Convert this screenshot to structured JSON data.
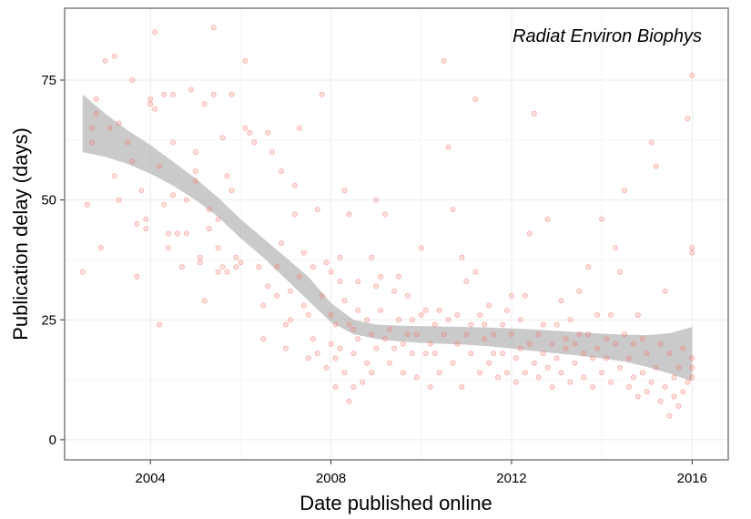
{
  "chart_data": {
    "type": "scatter",
    "annotation": "Radiat Environ Biophys",
    "xlabel": "Date published online",
    "ylabel": "Publication delay (days)",
    "xlim": [
      2002.1,
      2016.8
    ],
    "ylim": [
      -4.2,
      90
    ],
    "x_ticks": [
      2004,
      2008,
      2012,
      2016
    ],
    "x_tick_labels": [
      "2004",
      "2008",
      "2012",
      "2016"
    ],
    "y_ticks": [
      0,
      25,
      50,
      75
    ],
    "y_tick_labels": [
      "0",
      "25",
      "50",
      "75"
    ],
    "grid": true,
    "point_color": "#f8766d",
    "point_alpha": 0.3,
    "band_color": "#b3b3b3",
    "smooth": {
      "x": [
        2002.5,
        2003.0,
        2003.5,
        2004.0,
        2004.5,
        2005.0,
        2005.5,
        2006.0,
        2006.5,
        2007.0,
        2007.5,
        2008.0,
        2008.5,
        2009.0,
        2009.5,
        2010.0,
        2010.5,
        2011.0,
        2011.5,
        2012.0,
        2012.5,
        2013.0,
        2013.5,
        2014.0,
        2014.5,
        2015.0,
        2015.5,
        2016.0
      ],
      "lower": [
        60,
        59,
        57.5,
        55.5,
        53,
        50,
        46.5,
        42,
        38,
        33.5,
        29,
        24.5,
        22,
        21,
        20.5,
        20.2,
        20,
        19.8,
        19.5,
        19,
        18.5,
        18,
        17.5,
        17,
        16.3,
        15.2,
        13.8,
        12.2
      ],
      "upper": [
        72,
        68,
        64.5,
        61.5,
        58,
        54.5,
        50.5,
        46,
        42,
        38,
        34,
        28.5,
        25,
        24,
        23.8,
        23.7,
        23.6,
        23.5,
        23.4,
        23.2,
        23,
        22.7,
        22.4,
        22.1,
        21.9,
        21.8,
        22.2,
        23.5
      ]
    },
    "points": [
      [
        2002.5,
        35
      ],
      [
        2002.6,
        49
      ],
      [
        2002.7,
        62
      ],
      [
        2002.7,
        65
      ],
      [
        2002.8,
        68
      ],
      [
        2002.8,
        71
      ],
      [
        2002.9,
        40
      ],
      [
        2003.0,
        79
      ],
      [
        2003.1,
        65
      ],
      [
        2003.2,
        80
      ],
      [
        2003.2,
        55
      ],
      [
        2003.3,
        66
      ],
      [
        2003.3,
        50
      ],
      [
        2003.5,
        62
      ],
      [
        2003.6,
        58
      ],
      [
        2003.6,
        75
      ],
      [
        2003.7,
        45
      ],
      [
        2003.7,
        34
      ],
      [
        2003.8,
        52
      ],
      [
        2003.9,
        46
      ],
      [
        2003.9,
        44
      ],
      [
        2004.0,
        71
      ],
      [
        2004.0,
        70
      ],
      [
        2004.1,
        85
      ],
      [
        2004.1,
        69
      ],
      [
        2004.2,
        57
      ],
      [
        2004.2,
        24
      ],
      [
        2004.3,
        49
      ],
      [
        2004.3,
        72
      ],
      [
        2004.4,
        40
      ],
      [
        2004.4,
        43
      ],
      [
        2004.5,
        51
      ],
      [
        2004.5,
        62
      ],
      [
        2004.5,
        72
      ],
      [
        2004.6,
        43
      ],
      [
        2004.7,
        36
      ],
      [
        2004.8,
        43
      ],
      [
        2004.8,
        50
      ],
      [
        2004.9,
        73
      ],
      [
        2005.0,
        60
      ],
      [
        2005.0,
        54
      ],
      [
        2005.0,
        56
      ],
      [
        2005.1,
        37
      ],
      [
        2005.1,
        38
      ],
      [
        2005.2,
        70
      ],
      [
        2005.2,
        29
      ],
      [
        2005.3,
        48
      ],
      [
        2005.3,
        44
      ],
      [
        2005.4,
        72
      ],
      [
        2005.4,
        86
      ],
      [
        2005.5,
        46
      ],
      [
        2005.5,
        40
      ],
      [
        2005.5,
        35
      ],
      [
        2005.6,
        36
      ],
      [
        2005.6,
        63
      ],
      [
        2005.7,
        35
      ],
      [
        2005.7,
        55
      ],
      [
        2005.8,
        52
      ],
      [
        2005.8,
        72
      ],
      [
        2005.9,
        38
      ],
      [
        2005.9,
        36
      ],
      [
        2006.0,
        37
      ],
      [
        2006.1,
        79
      ],
      [
        2006.1,
        65
      ],
      [
        2006.2,
        64
      ],
      [
        2006.3,
        62
      ],
      [
        2006.4,
        36
      ],
      [
        2006.5,
        21
      ],
      [
        2006.5,
        28
      ],
      [
        2006.6,
        32
      ],
      [
        2006.6,
        64
      ],
      [
        2006.7,
        60
      ],
      [
        2006.8,
        30
      ],
      [
        2006.8,
        36
      ],
      [
        2006.9,
        56
      ],
      [
        2006.9,
        41
      ],
      [
        2007.0,
        24
      ],
      [
        2007.0,
        19
      ],
      [
        2007.1,
        31
      ],
      [
        2007.1,
        25
      ],
      [
        2007.2,
        53
      ],
      [
        2007.2,
        47
      ],
      [
        2007.3,
        65
      ],
      [
        2007.3,
        34
      ],
      [
        2007.4,
        28
      ],
      [
        2007.4,
        39
      ],
      [
        2007.5,
        17
      ],
      [
        2007.5,
        26
      ],
      [
        2007.6,
        36
      ],
      [
        2007.6,
        21
      ],
      [
        2007.7,
        48
      ],
      [
        2007.7,
        18
      ],
      [
        2007.8,
        72
      ],
      [
        2007.8,
        30
      ],
      [
        2007.9,
        37
      ],
      [
        2007.9,
        15
      ],
      [
        2008.0,
        35
      ],
      [
        2008.0,
        26
      ],
      [
        2008.0,
        20
      ],
      [
        2008.1,
        24
      ],
      [
        2008.1,
        11
      ],
      [
        2008.1,
        17
      ],
      [
        2008.2,
        38
      ],
      [
        2008.2,
        33
      ],
      [
        2008.2,
        19
      ],
      [
        2008.3,
        52
      ],
      [
        2008.3,
        29
      ],
      [
        2008.3,
        14
      ],
      [
        2008.4,
        47
      ],
      [
        2008.4,
        24
      ],
      [
        2008.4,
        8
      ],
      [
        2008.5,
        23
      ],
      [
        2008.5,
        18
      ],
      [
        2008.5,
        11
      ],
      [
        2008.6,
        33
      ],
      [
        2008.6,
        27
      ],
      [
        2008.6,
        21
      ],
      [
        2008.7,
        12
      ],
      [
        2008.8,
        25
      ],
      [
        2008.8,
        16
      ],
      [
        2008.9,
        38
      ],
      [
        2008.9,
        22
      ],
      [
        2008.9,
        14
      ],
      [
        2009.0,
        32
      ],
      [
        2009.0,
        50
      ],
      [
        2009.0,
        19
      ],
      [
        2009.1,
        34
      ],
      [
        2009.1,
        27
      ],
      [
        2009.2,
        47
      ],
      [
        2009.2,
        21
      ],
      [
        2009.3,
        23
      ],
      [
        2009.3,
        16
      ],
      [
        2009.4,
        31
      ],
      [
        2009.4,
        19
      ],
      [
        2009.5,
        34
      ],
      [
        2009.5,
        25
      ],
      [
        2009.6,
        20
      ],
      [
        2009.6,
        14
      ],
      [
        2009.7,
        22
      ],
      [
        2009.7,
        30
      ],
      [
        2009.8,
        18
      ],
      [
        2009.8,
        25
      ],
      [
        2009.9,
        13
      ],
      [
        2009.9,
        22
      ],
      [
        2010.0,
        40
      ],
      [
        2010.0,
        26
      ],
      [
        2010.1,
        18
      ],
      [
        2010.1,
        27
      ],
      [
        2010.2,
        20
      ],
      [
        2010.2,
        11
      ],
      [
        2010.3,
        24
      ],
      [
        2010.3,
        18
      ],
      [
        2010.4,
        27
      ],
      [
        2010.4,
        14
      ],
      [
        2010.5,
        22
      ],
      [
        2010.5,
        79
      ],
      [
        2010.6,
        61
      ],
      [
        2010.6,
        25
      ],
      [
        2010.7,
        48
      ],
      [
        2010.7,
        16
      ],
      [
        2010.8,
        26
      ],
      [
        2010.8,
        20
      ],
      [
        2010.9,
        38
      ],
      [
        2010.9,
        11
      ],
      [
        2011.0,
        33
      ],
      [
        2011.0,
        22
      ],
      [
        2011.1,
        24
      ],
      [
        2011.1,
        18
      ],
      [
        2011.2,
        35
      ],
      [
        2011.2,
        71
      ],
      [
        2011.3,
        26
      ],
      [
        2011.3,
        14
      ],
      [
        2011.4,
        21
      ],
      [
        2011.4,
        24
      ],
      [
        2011.5,
        16
      ],
      [
        2011.5,
        28
      ],
      [
        2011.6,
        22
      ],
      [
        2011.6,
        18
      ],
      [
        2011.7,
        13
      ],
      [
        2011.8,
        24
      ],
      [
        2011.8,
        18
      ],
      [
        2011.9,
        27
      ],
      [
        2011.9,
        14
      ],
      [
        2012.0,
        30
      ],
      [
        2012.0,
        22
      ],
      [
        2012.1,
        17
      ],
      [
        2012.1,
        12
      ],
      [
        2012.2,
        25
      ],
      [
        2012.2,
        19
      ],
      [
        2012.3,
        30
      ],
      [
        2012.3,
        14
      ],
      [
        2012.4,
        43
      ],
      [
        2012.4,
        20
      ],
      [
        2012.5,
        16
      ],
      [
        2012.5,
        68
      ],
      [
        2012.6,
        22
      ],
      [
        2012.6,
        13
      ],
      [
        2012.7,
        18
      ],
      [
        2012.7,
        24
      ],
      [
        2012.8,
        46
      ],
      [
        2012.8,
        15
      ],
      [
        2012.9,
        20
      ],
      [
        2012.9,
        11
      ],
      [
        2013.0,
        24
      ],
      [
        2013.0,
        17
      ],
      [
        2013.1,
        29
      ],
      [
        2013.1,
        14
      ],
      [
        2013.2,
        21
      ],
      [
        2013.2,
        19
      ],
      [
        2013.3,
        25
      ],
      [
        2013.3,
        12
      ],
      [
        2013.4,
        20
      ],
      [
        2013.4,
        16
      ],
      [
        2013.5,
        31
      ],
      [
        2013.5,
        22
      ],
      [
        2013.6,
        18
      ],
      [
        2013.6,
        13
      ],
      [
        2013.7,
        36
      ],
      [
        2013.7,
        22
      ],
      [
        2013.8,
        17
      ],
      [
        2013.8,
        11
      ],
      [
        2013.9,
        26
      ],
      [
        2013.9,
        19
      ],
      [
        2014.0,
        46
      ],
      [
        2014.0,
        14
      ],
      [
        2014.1,
        21
      ],
      [
        2014.1,
        17
      ],
      [
        2014.2,
        26
      ],
      [
        2014.2,
        12
      ],
      [
        2014.3,
        40
      ],
      [
        2014.3,
        20
      ],
      [
        2014.4,
        35
      ],
      [
        2014.4,
        15
      ],
      [
        2014.5,
        22
      ],
      [
        2014.5,
        52
      ],
      [
        2014.6,
        17
      ],
      [
        2014.6,
        11
      ],
      [
        2014.7,
        20
      ],
      [
        2014.7,
        13
      ],
      [
        2014.8,
        26
      ],
      [
        2014.8,
        9
      ],
      [
        2014.9,
        14
      ],
      [
        2014.9,
        21
      ],
      [
        2015.0,
        18
      ],
      [
        2015.0,
        10
      ],
      [
        2015.1,
        12
      ],
      [
        2015.1,
        62
      ],
      [
        2015.2,
        57
      ],
      [
        2015.2,
        15
      ],
      [
        2015.3,
        20
      ],
      [
        2015.3,
        8
      ],
      [
        2015.4,
        11
      ],
      [
        2015.4,
        31
      ],
      [
        2015.5,
        18
      ],
      [
        2015.5,
        5
      ],
      [
        2015.6,
        13
      ],
      [
        2015.6,
        9
      ],
      [
        2015.7,
        15
      ],
      [
        2015.7,
        7
      ],
      [
        2015.8,
        10
      ],
      [
        2015.8,
        19
      ],
      [
        2015.9,
        12
      ],
      [
        2015.9,
        67
      ],
      [
        2016.0,
        40
      ],
      [
        2016.0,
        76
      ],
      [
        2016.0,
        39
      ],
      [
        2016.0,
        17
      ],
      [
        2016.0,
        15
      ],
      [
        2016.0,
        13
      ]
    ]
  }
}
